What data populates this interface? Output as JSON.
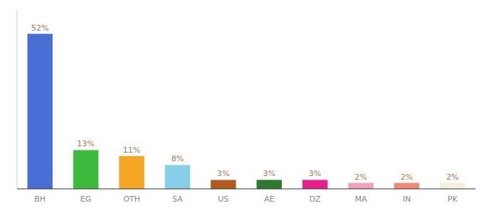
{
  "chart_data": {
    "type": "bar",
    "categories": [
      "BH",
      "EG",
      "OTH",
      "SA",
      "US",
      "AE",
      "DZ",
      "MA",
      "IN",
      "PK"
    ],
    "values": [
      52,
      13,
      11,
      8,
      3,
      3,
      3,
      2,
      2,
      2
    ],
    "value_labels": [
      "52%",
      "13%",
      "11%",
      "8%",
      "3%",
      "3%",
      "3%",
      "2%",
      "2%",
      "2%"
    ],
    "colors": [
      "#4a6fd4",
      "#3dba3d",
      "#f5a623",
      "#87ceeb",
      "#b35a1f",
      "#2d7a2d",
      "#e91e8c",
      "#f0a0b8",
      "#f08878",
      "#f5f0d8"
    ],
    "ylim": [
      0,
      60
    ],
    "data_labels": true,
    "tick_labels": "x",
    "grid": false
  }
}
